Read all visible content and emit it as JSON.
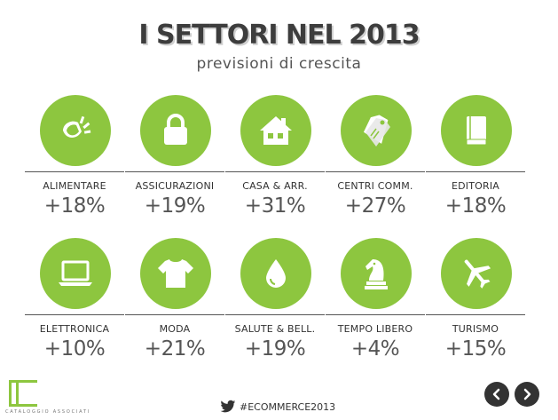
{
  "header": {
    "title": "I SETTORI NEL 2013",
    "subtitle": "previsioni di crescita"
  },
  "colors": {
    "accent": "#8dc63f",
    "text": "#333333",
    "nav_button": "#333333"
  },
  "sectors": [
    {
      "label": "ALIMENTARE",
      "value": "+18%",
      "icon": "lemon-icon"
    },
    {
      "label": "ASSICURAZIONI",
      "value": "+19%",
      "icon": "padlock-icon"
    },
    {
      "label": "CASA & ARR.",
      "value": "+31%",
      "icon": "house-icon"
    },
    {
      "label": "CENTRI COMM.",
      "value": "+27%",
      "icon": "price-tags-icon"
    },
    {
      "label": "EDITORIA",
      "value": "+18%",
      "icon": "book-icon"
    },
    {
      "label": "ELETTRONICA",
      "value": "+10%",
      "icon": "laptop-icon"
    },
    {
      "label": "MODA",
      "value": "+21%",
      "icon": "tshirt-icon"
    },
    {
      "label": "SALUTE & BELL.",
      "value": "+19%",
      "icon": "drop-icon"
    },
    {
      "label": "TEMPO LIBERO",
      "value": "+4%",
      "icon": "chess-knight-icon"
    },
    {
      "label": "TURISMO",
      "value": "+15%",
      "icon": "airplane-icon"
    }
  ],
  "footer": {
    "logo_text": "CATALOGGIO ASSOCIATI",
    "hashtag": "#ECOMMERCE2013",
    "hashtag_icon": "twitter-bird-icon",
    "prev_icon": "chevron-left-icon",
    "next_icon": "chevron-right-icon"
  }
}
